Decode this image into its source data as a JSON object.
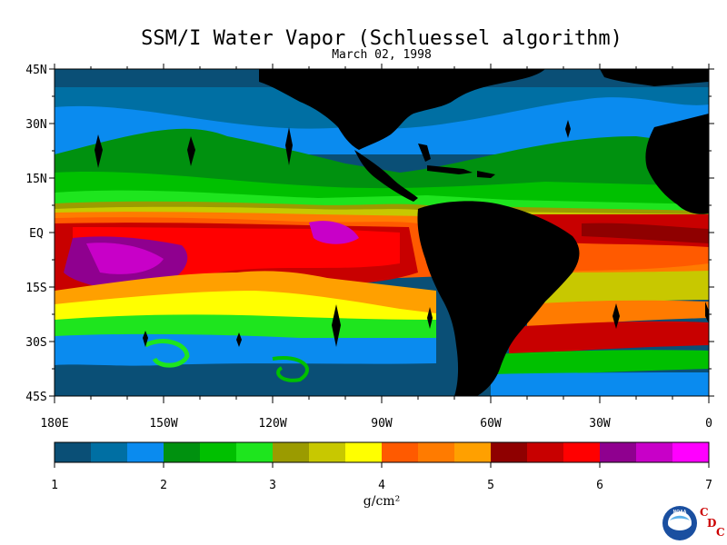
{
  "title": "SSM/I Water Vapor (Schluessel algorithm)",
  "subtitle": "March 02, 1998",
  "map": {
    "lat_ticks": [
      "45N",
      "30N",
      "15N",
      "EQ",
      "15S",
      "30S",
      "45S"
    ],
    "lon_ticks": [
      "180E",
      "150W",
      "120W",
      "90W",
      "60W",
      "30W",
      "0"
    ],
    "lat_range": [
      -45,
      45
    ],
    "lon_range": [
      -180,
      0
    ],
    "land_color": "#000000"
  },
  "colorbar": {
    "colors": [
      "#0a4f76",
      "#006fa3",
      "#0a8bef",
      "#00910f",
      "#00c000",
      "#1ee51e",
      "#9b9b00",
      "#c8c800",
      "#ffff00",
      "#ff5a00",
      "#ff7b00",
      "#ffa000",
      "#8f0000",
      "#c80000",
      "#ff0000",
      "#8f008f",
      "#c800c8",
      "#ff00ff"
    ],
    "labels": [
      "1",
      "2",
      "3",
      "4",
      "5",
      "6",
      "7"
    ],
    "min": 1,
    "max": 7,
    "unit": "g/cm²"
  },
  "logos": {
    "noaa": "NOAA",
    "cdc": [
      "C",
      "D",
      "C"
    ]
  }
}
